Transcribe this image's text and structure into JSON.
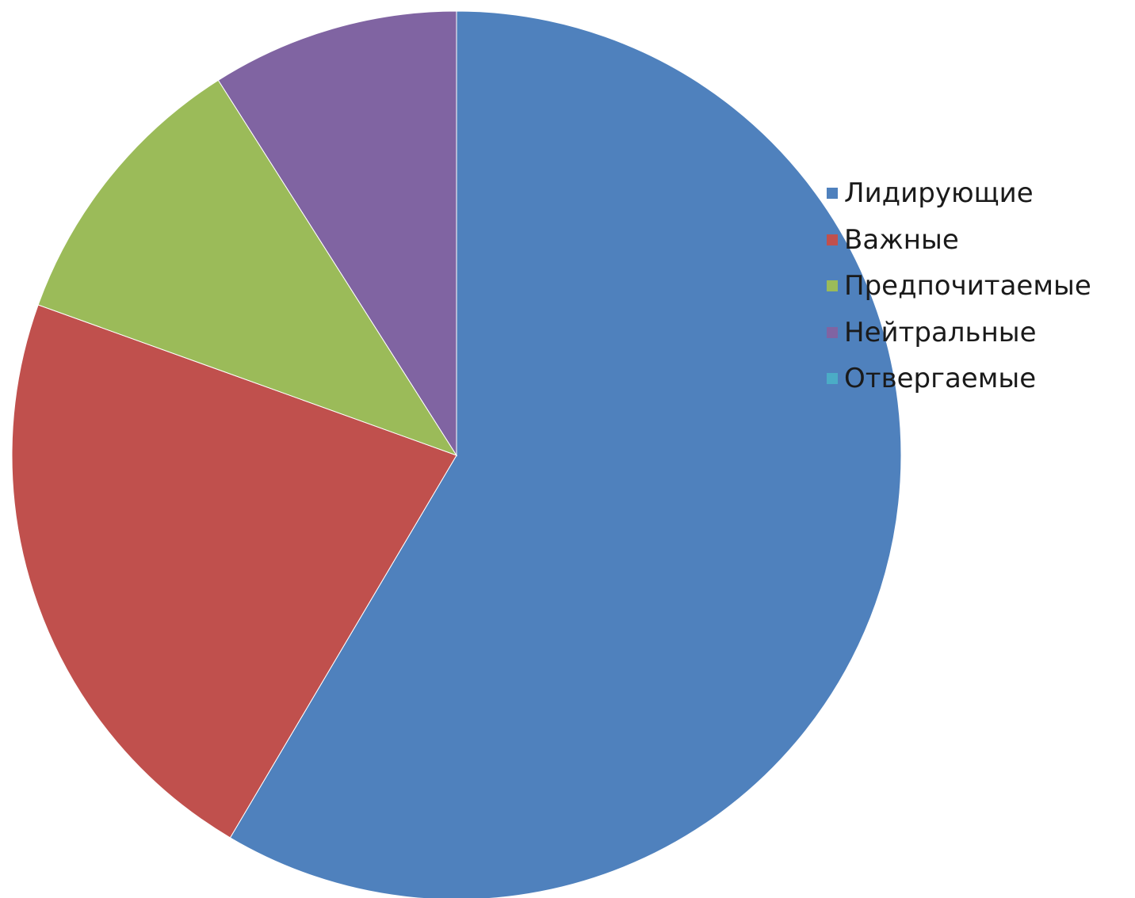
{
  "chart_data": {
    "type": "pie",
    "categories": [
      "Лидирующие",
      "Важные",
      "Предпочитаемые",
      "Нейтральные",
      "Отвергаемые"
    ],
    "values": [
      58.5,
      22,
      10.5,
      9,
      0
    ],
    "colors": [
      "#4f81bd",
      "#c0504d",
      "#9bbb59",
      "#8064a2",
      "#4bacc6"
    ],
    "start_angle_deg": 0,
    "direction": "clockwise",
    "legend_position": "right"
  }
}
